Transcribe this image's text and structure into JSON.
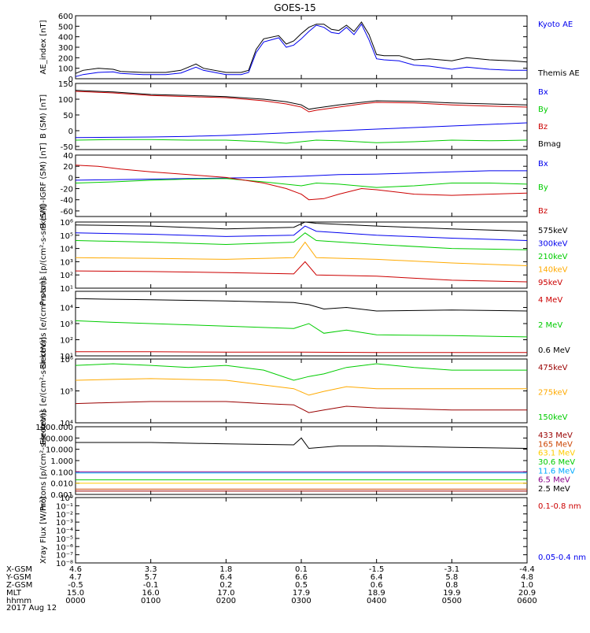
{
  "title": "GOES-15",
  "date_label": "2017 Aug 12",
  "x_axis": {
    "ticks": [
      "0000",
      "0100",
      "0200",
      "0300",
      "0400",
      "0500",
      "0600"
    ],
    "rows": [
      {
        "label": "X-GSM",
        "values": [
          "4.6",
          "3.3",
          "1.8",
          "0.1",
          "-1.5",
          "-3.1",
          "-4.4"
        ]
      },
      {
        "label": "Y-GSM",
        "values": [
          "4.7",
          "5.7",
          "6.4",
          "6.6",
          "6.4",
          "5.8",
          "4.8"
        ]
      },
      {
        "label": "Z-GSM",
        "values": [
          "-0.5",
          "-0.1",
          "0.2",
          "0.5",
          "0.6",
          "0.8",
          "1.0"
        ]
      },
      {
        "label": "MLT",
        "values": [
          "15.0",
          "16.0",
          "17.0",
          "17.9",
          "18.9",
          "19.9",
          "20.9"
        ]
      },
      {
        "label": "hhmm",
        "values": [
          "0000",
          "0100",
          "0200",
          "0300",
          "0400",
          "0500",
          "0600"
        ]
      }
    ]
  },
  "colors": {
    "black": "#000000",
    "blue": "#0000ee",
    "green": "#00cc00",
    "red": "#cc0000",
    "orange": "#ffaa00",
    "darkred": "#990000",
    "cyan": "#00aaff",
    "purple": "#880088"
  },
  "chart_data": [
    {
      "type": "line",
      "ylabel": "AE_index [nT]",
      "ylim": [
        0,
        600
      ],
      "yticks": [
        "0",
        "100",
        "200",
        "300",
        "400",
        "500",
        "600"
      ],
      "series": [
        {
          "name": "Kyoto AE",
          "color": "#0000ee",
          "x": [
            0,
            0.1,
            0.3,
            0.5,
            0.6,
            0.9,
            1.2,
            1.4,
            1.6,
            1.7,
            2.0,
            2.2,
            2.3,
            2.4,
            2.5,
            2.7,
            2.8,
            2.9,
            3.0,
            3.1,
            3.2,
            3.3,
            3.4,
            3.5,
            3.6,
            3.7,
            3.8,
            3.9,
            4.0,
            4.1,
            4.3,
            4.5,
            4.7,
            5.0,
            5.2,
            5.5,
            5.8,
            6.0
          ],
          "y": [
            20,
            40,
            60,
            65,
            50,
            40,
            40,
            55,
            110,
            80,
            40,
            40,
            60,
            250,
            350,
            390,
            300,
            320,
            380,
            450,
            510,
            490,
            440,
            430,
            490,
            420,
            520,
            370,
            190,
            180,
            170,
            130,
            120,
            90,
            110,
            90,
            80,
            80
          ]
        },
        {
          "name": "Themis AE",
          "color": "#000000",
          "x": [
            0,
            0.1,
            0.3,
            0.5,
            0.6,
            0.9,
            1.2,
            1.4,
            1.6,
            1.7,
            2.0,
            2.2,
            2.3,
            2.4,
            2.5,
            2.7,
            2.8,
            2.9,
            3.0,
            3.1,
            3.2,
            3.3,
            3.4,
            3.5,
            3.6,
            3.7,
            3.8,
            3.9,
            4.0,
            4.1,
            4.3,
            4.5,
            4.7,
            5.0,
            5.2,
            5.5,
            5.8,
            6.0
          ],
          "y": [
            50,
            80,
            100,
            90,
            70,
            60,
            60,
            80,
            140,
            100,
            60,
            60,
            80,
            280,
            380,
            410,
            330,
            360,
            430,
            490,
            520,
            520,
            470,
            460,
            510,
            450,
            540,
            420,
            230,
            220,
            220,
            180,
            190,
            170,
            200,
            180,
            170,
            160
          ]
        }
      ]
    },
    {
      "type": "line",
      "ylabel": "B (SM) [nT]",
      "ylim": [
        -60,
        150
      ],
      "yticks": [
        "-50",
        "0",
        "50",
        "100",
        "150"
      ],
      "series": [
        {
          "name": "Bx",
          "color": "#0000ee",
          "x": [
            0,
            0.5,
            1.0,
            1.5,
            2.0,
            2.5,
            3.0,
            3.5,
            4.0,
            4.5,
            5.0,
            5.5,
            6.0
          ],
          "y": [
            -22,
            -21,
            -20,
            -18,
            -15,
            -10,
            -5,
            0,
            5,
            10,
            15,
            20,
            25
          ]
        },
        {
          "name": "By",
          "color": "#00cc00",
          "x": [
            0,
            0.5,
            1.0,
            1.5,
            2.0,
            2.5,
            2.8,
            3.0,
            3.2,
            3.5,
            4.0,
            4.5,
            5.0,
            5.5,
            6.0
          ],
          "y": [
            -30,
            -28,
            -28,
            -30,
            -30,
            -35,
            -40,
            -35,
            -30,
            -32,
            -38,
            -35,
            -30,
            -32,
            -30
          ]
        },
        {
          "name": "Bz",
          "color": "#cc0000",
          "x": [
            0,
            0.5,
            1.0,
            1.5,
            2.0,
            2.5,
            2.8,
            3.0,
            3.1,
            3.2,
            3.5,
            3.8,
            4.0,
            4.5,
            5.0,
            5.5,
            6.0
          ],
          "y": [
            125,
            120,
            112,
            108,
            105,
            95,
            85,
            75,
            60,
            65,
            75,
            85,
            90,
            88,
            82,
            78,
            75
          ]
        },
        {
          "name": "Bmag",
          "color": "#000000",
          "x": [
            0,
            0.5,
            1.0,
            1.5,
            2.0,
            2.5,
            2.8,
            3.0,
            3.1,
            3.2,
            3.5,
            3.8,
            4.0,
            4.5,
            5.0,
            5.5,
            6.0
          ],
          "y": [
            128,
            123,
            115,
            112,
            108,
            100,
            92,
            82,
            68,
            72,
            82,
            90,
            95,
            93,
            88,
            85,
            82
          ]
        }
      ]
    },
    {
      "type": "line",
      "ylabel": "B (SM)-IGRF (SM) [nT]",
      "ylim": [
        -70,
        40
      ],
      "yticks": [
        "-60",
        "-40",
        "-20",
        "0",
        "20",
        "40"
      ],
      "series": [
        {
          "name": "Bx",
          "color": "#0000ee",
          "x": [
            0,
            0.5,
            1.0,
            1.5,
            2.0,
            2.5,
            3.0,
            3.5,
            4.0,
            4.5,
            5.0,
            5.5,
            6.0
          ],
          "y": [
            -5,
            -4,
            -3,
            -2,
            -1,
            0,
            2,
            5,
            6,
            8,
            10,
            12,
            12
          ]
        },
        {
          "name": "By",
          "color": "#00cc00",
          "x": [
            0,
            0.5,
            1.0,
            1.5,
            2.0,
            2.5,
            3.0,
            3.2,
            3.5,
            4.0,
            4.5,
            5.0,
            5.5,
            6.0
          ],
          "y": [
            -10,
            -8,
            -5,
            -3,
            -2,
            -8,
            -15,
            -10,
            -12,
            -18,
            -15,
            -10,
            -10,
            -12
          ]
        },
        {
          "name": "Bz",
          "color": "#cc0000",
          "x": [
            0,
            0.3,
            0.6,
            1.0,
            1.5,
            2.0,
            2.5,
            2.8,
            3.0,
            3.1,
            3.3,
            3.5,
            3.8,
            4.0,
            4.5,
            5.0,
            5.5,
            6.0
          ],
          "y": [
            22,
            20,
            15,
            10,
            5,
            0,
            -10,
            -20,
            -30,
            -40,
            -38,
            -30,
            -20,
            -22,
            -30,
            -32,
            -30,
            -28
          ]
        }
      ]
    },
    {
      "type": "line",
      "scale": "log",
      "ylabel": "Protons [p/(cm²-s-sr-keV)]",
      "ylim": [
        10,
        1000000
      ],
      "yticks": [
        "10¹",
        "10²",
        "10³",
        "10⁴",
        "10⁵",
        "10⁶"
      ],
      "series": [
        {
          "name": "575keV",
          "color": "#000000",
          "x": [
            0,
            1,
            2,
            2.9,
            3.05,
            3.2,
            4,
            5,
            6
          ],
          "y": [
            600000,
            500000,
            300000,
            400000,
            1500000,
            800000,
            500000,
            300000,
            200000
          ]
        },
        {
          "name": "300keV",
          "color": "#0000ee",
          "x": [
            0,
            1,
            2,
            2.9,
            3.05,
            3.2,
            4,
            5,
            6
          ],
          "y": [
            150000,
            120000,
            80000,
            100000,
            500000,
            200000,
            100000,
            60000,
            40000
          ]
        },
        {
          "name": "210keV",
          "color": "#00cc00",
          "x": [
            0,
            1,
            2,
            2.9,
            3.05,
            3.2,
            4,
            5,
            6
          ],
          "y": [
            40000,
            30000,
            20000,
            30000,
            150000,
            40000,
            20000,
            10000,
            8000
          ]
        },
        {
          "name": "140keV",
          "color": "#ffaa00",
          "x": [
            0,
            1,
            2,
            2.9,
            3.05,
            3.2,
            4,
            5,
            6
          ],
          "y": [
            2000,
            1800,
            1500,
            2000,
            30000,
            2000,
            1500,
            800,
            500
          ]
        },
        {
          "name": "95keV",
          "color": "#cc0000",
          "x": [
            0,
            1,
            2,
            2.9,
            3.05,
            3.2,
            4,
            5,
            6
          ],
          "y": [
            200,
            180,
            150,
            120,
            1000,
            100,
            80,
            40,
            30
          ]
        }
      ]
    },
    {
      "type": "line",
      "scale": "log",
      "ylabel": "Electrons [e/(cm²-s-sr)]",
      "ylim": [
        10,
        100000
      ],
      "yticks": [
        "10¹",
        "10²",
        "10³",
        "10⁴"
      ],
      "series": [
        {
          "name": "4 MeV",
          "color": "#cc0000",
          "x": [
            0,
            1,
            2,
            3,
            4,
            5,
            6
          ],
          "y": [
            18,
            18,
            17,
            17,
            16,
            16,
            16
          ]
        },
        {
          "name": "2 MeV",
          "color": "#00cc00",
          "x": [
            0,
            0.5,
            1,
            2,
            2.9,
            3.1,
            3.3,
            3.6,
            4,
            5,
            6
          ],
          "y": [
            1500,
            1200,
            1000,
            700,
            500,
            1000,
            250,
            400,
            200,
            180,
            150
          ]
        },
        {
          "name": "0.6 MeV",
          "color": "#000000",
          "x": [
            0,
            0.5,
            1,
            2,
            2.9,
            3.1,
            3.3,
            3.6,
            4,
            5,
            6
          ],
          "y": [
            35000,
            32000,
            30000,
            25000,
            20000,
            15000,
            8000,
            10000,
            6000,
            7000,
            6000
          ]
        }
      ]
    },
    {
      "type": "line",
      "scale": "log",
      "ylabel": "Electrons [e/(cm²-s-sr-keV)]",
      "ylim": [
        1000,
        1000000
      ],
      "yticks": [
        "10⁴",
        "10⁵",
        "10⁶"
      ],
      "series": [
        {
          "name": "475keV",
          "color": "#990000",
          "x": [
            0,
            0.5,
            1,
            2,
            2.5,
            2.9,
            3.1,
            3.3,
            3.6,
            4,
            5,
            6
          ],
          "y": [
            8000,
            9000,
            10000,
            10000,
            8000,
            7000,
            3000,
            4000,
            6000,
            5000,
            4000,
            4000
          ]
        },
        {
          "name": "275keV",
          "color": "#ffaa00",
          "x": [
            0,
            0.5,
            1,
            2,
            2.5,
            2.9,
            3.1,
            3.3,
            3.6,
            4,
            5,
            6
          ],
          "y": [
            100000,
            110000,
            120000,
            100000,
            60000,
            40000,
            20000,
            30000,
            50000,
            40000,
            40000,
            40000
          ]
        },
        {
          "name": "150keV",
          "color": "#00cc00",
          "x": [
            0,
            0.5,
            1,
            1.5,
            2,
            2.5,
            2.9,
            3.1,
            3.3,
            3.6,
            4,
            4.5,
            5,
            6
          ],
          "y": [
            500000,
            600000,
            500000,
            400000,
            500000,
            300000,
            100000,
            150000,
            200000,
            400000,
            600000,
            400000,
            300000,
            300000
          ]
        }
      ]
    },
    {
      "type": "line",
      "scale": "log",
      "ylabel": "Protons [p/(cm²-s-sr-keV)]",
      "ylim": [
        0.001,
        1000
      ],
      "yticks": [
        "0.001",
        "0.010",
        "0.100",
        "1.000",
        "10.000",
        "100.000",
        "1000.000"
      ],
      "series": [
        {
          "name": "433 MeV",
          "color": "#990000",
          "x": [
            0,
            6
          ],
          "y": [
            0.002,
            0.002
          ]
        },
        {
          "name": "165 MeV",
          "color": "#cc4400",
          "x": [
            0,
            6
          ],
          "y": [
            0.003,
            0.003
          ]
        },
        {
          "name": "63.1 MeV",
          "color": "#ffcc00",
          "x": [
            0,
            6
          ],
          "y": [
            0.01,
            0.01
          ]
        },
        {
          "name": "30.6 MeV",
          "color": "#00cc00",
          "x": [
            0,
            6
          ],
          "y": [
            0.02,
            0.02
          ]
        },
        {
          "name": "11.6 MeV",
          "color": "#00aaff",
          "x": [
            0,
            6
          ],
          "y": [
            0.08,
            0.08
          ]
        },
        {
          "name": "6.5 MeV",
          "color": "#880088",
          "x": [
            0,
            6
          ],
          "y": [
            0.1,
            0.1
          ]
        },
        {
          "name": "2.5 MeV",
          "color": "#000000",
          "x": [
            0,
            1,
            2,
            2.9,
            3.0,
            3.1,
            3.5,
            4,
            5,
            6
          ],
          "y": [
            40,
            40,
            30,
            25,
            100,
            12,
            20,
            20,
            15,
            12
          ]
        }
      ]
    },
    {
      "type": "line",
      "scale": "log",
      "ylabel": "Xray Flux [W/m²]",
      "ylim": [
        1e-08,
        1
      ],
      "yticks": [
        "10⁻⁸",
        "10⁻⁷",
        "10⁻⁶",
        "10⁻⁵",
        "10⁻⁴",
        "10⁻³",
        "10⁻²",
        "10⁻¹",
        "10⁰"
      ],
      "series": [
        {
          "name": "0.1-0.8 nm",
          "color": "#cc0000",
          "x": [],
          "y": []
        },
        {
          "name": "0.05-0.4 nm",
          "color": "#0000ee",
          "x": [],
          "y": []
        }
      ]
    }
  ]
}
